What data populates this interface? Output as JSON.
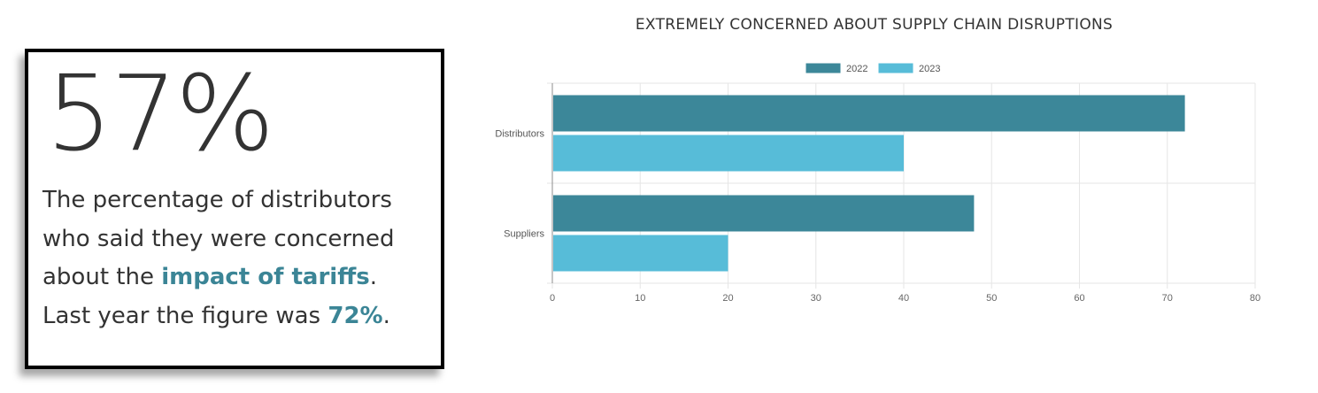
{
  "card": {
    "big_stat": "57%",
    "text_1": "The percentage of distributors who said they were concerned about the ",
    "text_hl_1": "impact of tariffs",
    "text_2": ". Last year the figure was ",
    "text_hl_2": "72%",
    "text_3": ".",
    "highlight_color": "#3b8596"
  },
  "chart_data": {
    "type": "bar",
    "orientation": "horizontal",
    "title": "EXTREMELY CONCERNED ABOUT SUPPLY CHAIN DISRUPTIONS",
    "categories": [
      "Distributors",
      "Suppliers"
    ],
    "series": [
      {
        "name": "2022",
        "values": [
          72,
          48
        ],
        "color": "#3c8799"
      },
      {
        "name": "2023",
        "values": [
          40,
          20
        ],
        "color": "#57bcd8"
      }
    ],
    "xlim": [
      0,
      80
    ],
    "xticks": [
      "0",
      "10",
      "20",
      "30",
      "40",
      "50",
      "60",
      "70",
      "80"
    ],
    "grid": true,
    "legend": "top-center"
  }
}
